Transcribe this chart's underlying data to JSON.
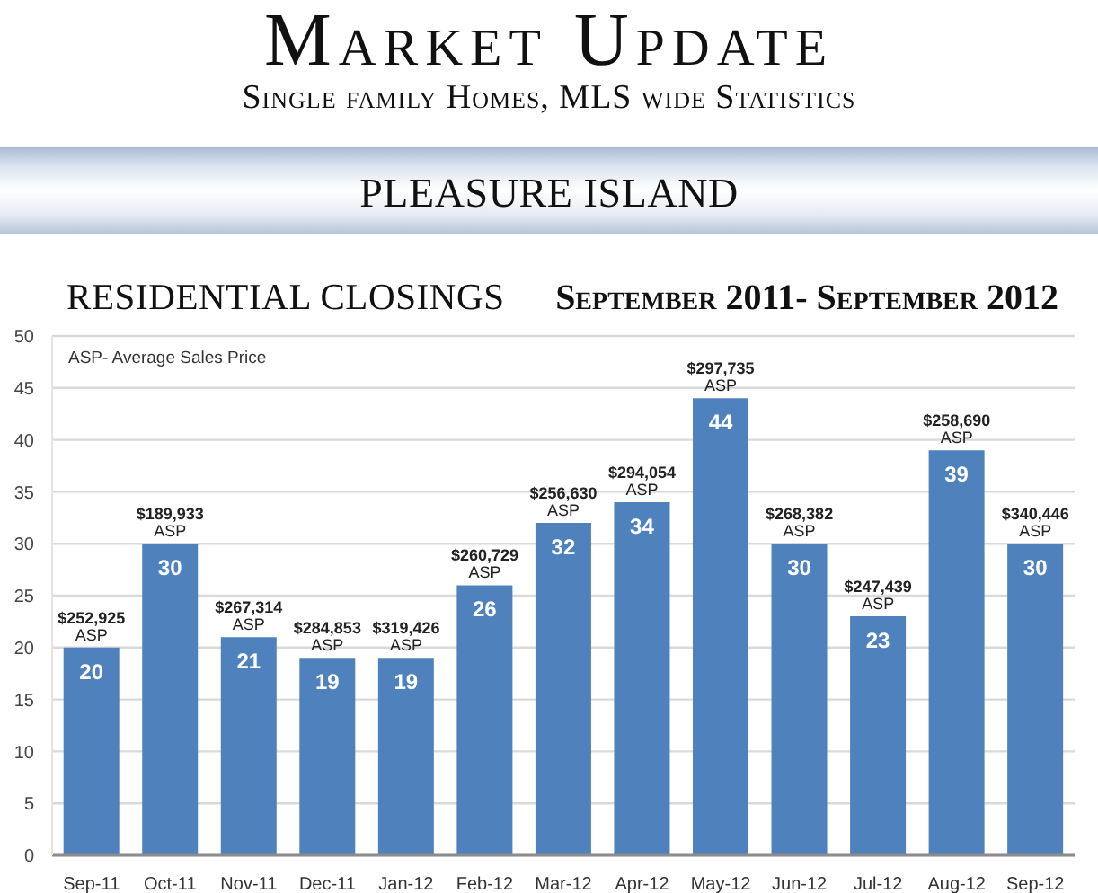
{
  "chart_data": {
    "type": "bar",
    "title": "Market Update",
    "subtitle": "Single family Homes, MLS wide Statistics",
    "categories": [
      "Sep-11",
      "Oct-11",
      "Nov-11",
      "Dec-11",
      "Jan-12",
      "Feb-12",
      "Mar-12",
      "Apr-12",
      "May-12",
      "Jun-12",
      "Jul-12",
      "Aug-12",
      "Sep-12"
    ],
    "values": [
      20,
      30,
      21,
      19,
      19,
      26,
      32,
      34,
      44,
      30,
      23,
      39,
      30
    ],
    "color": "#4f81bd",
    "ylim": [
      0,
      50
    ],
    "yticks": [
      0,
      5,
      10,
      15,
      20,
      25,
      30,
      35,
      40,
      45,
      50
    ],
    "grid": "y",
    "data_labels": true,
    "annotations": [
      "PLEASURE ISLAND",
      "RESIDENTIAL CLOSINGS",
      "September 2011- September 2012",
      "ASP- Average Sales Price",
      {
        "text": "$252,925\nASP",
        "x": "Sep-11",
        "y": 20
      },
      {
        "text": "$189,933\nASP",
        "x": "Oct-11",
        "y": 30
      },
      {
        "text": "$267,314\nASP",
        "x": "Nov-11",
        "y": 21
      },
      {
        "text": "$284,853\nASP",
        "x": "Dec-11",
        "y": 19
      },
      {
        "text": "$319,426\nASP",
        "x": "Jan-12",
        "y": 19
      },
      {
        "text": "$260,729\nASP",
        "x": "Feb-12",
        "y": 26
      },
      {
        "text": "$256,630\nASP",
        "x": "Mar-12",
        "y": 32
      },
      {
        "text": "$294,054\nASP",
        "x": "Apr-12",
        "y": 34
      },
      {
        "text": "$297,735\nASP",
        "x": "May-12",
        "y": 44
      },
      {
        "text": "$268,382\nASP",
        "x": "Jun-12",
        "y": 30
      },
      {
        "text": "$247,439\nASP",
        "x": "Jul-12",
        "y": 23
      },
      {
        "text": "$258,690\nASP",
        "x": "Aug-12",
        "y": 39
      },
      {
        "text": "$340,446\nASP",
        "x": "Sep-12",
        "y": 30
      }
    ]
  }
}
